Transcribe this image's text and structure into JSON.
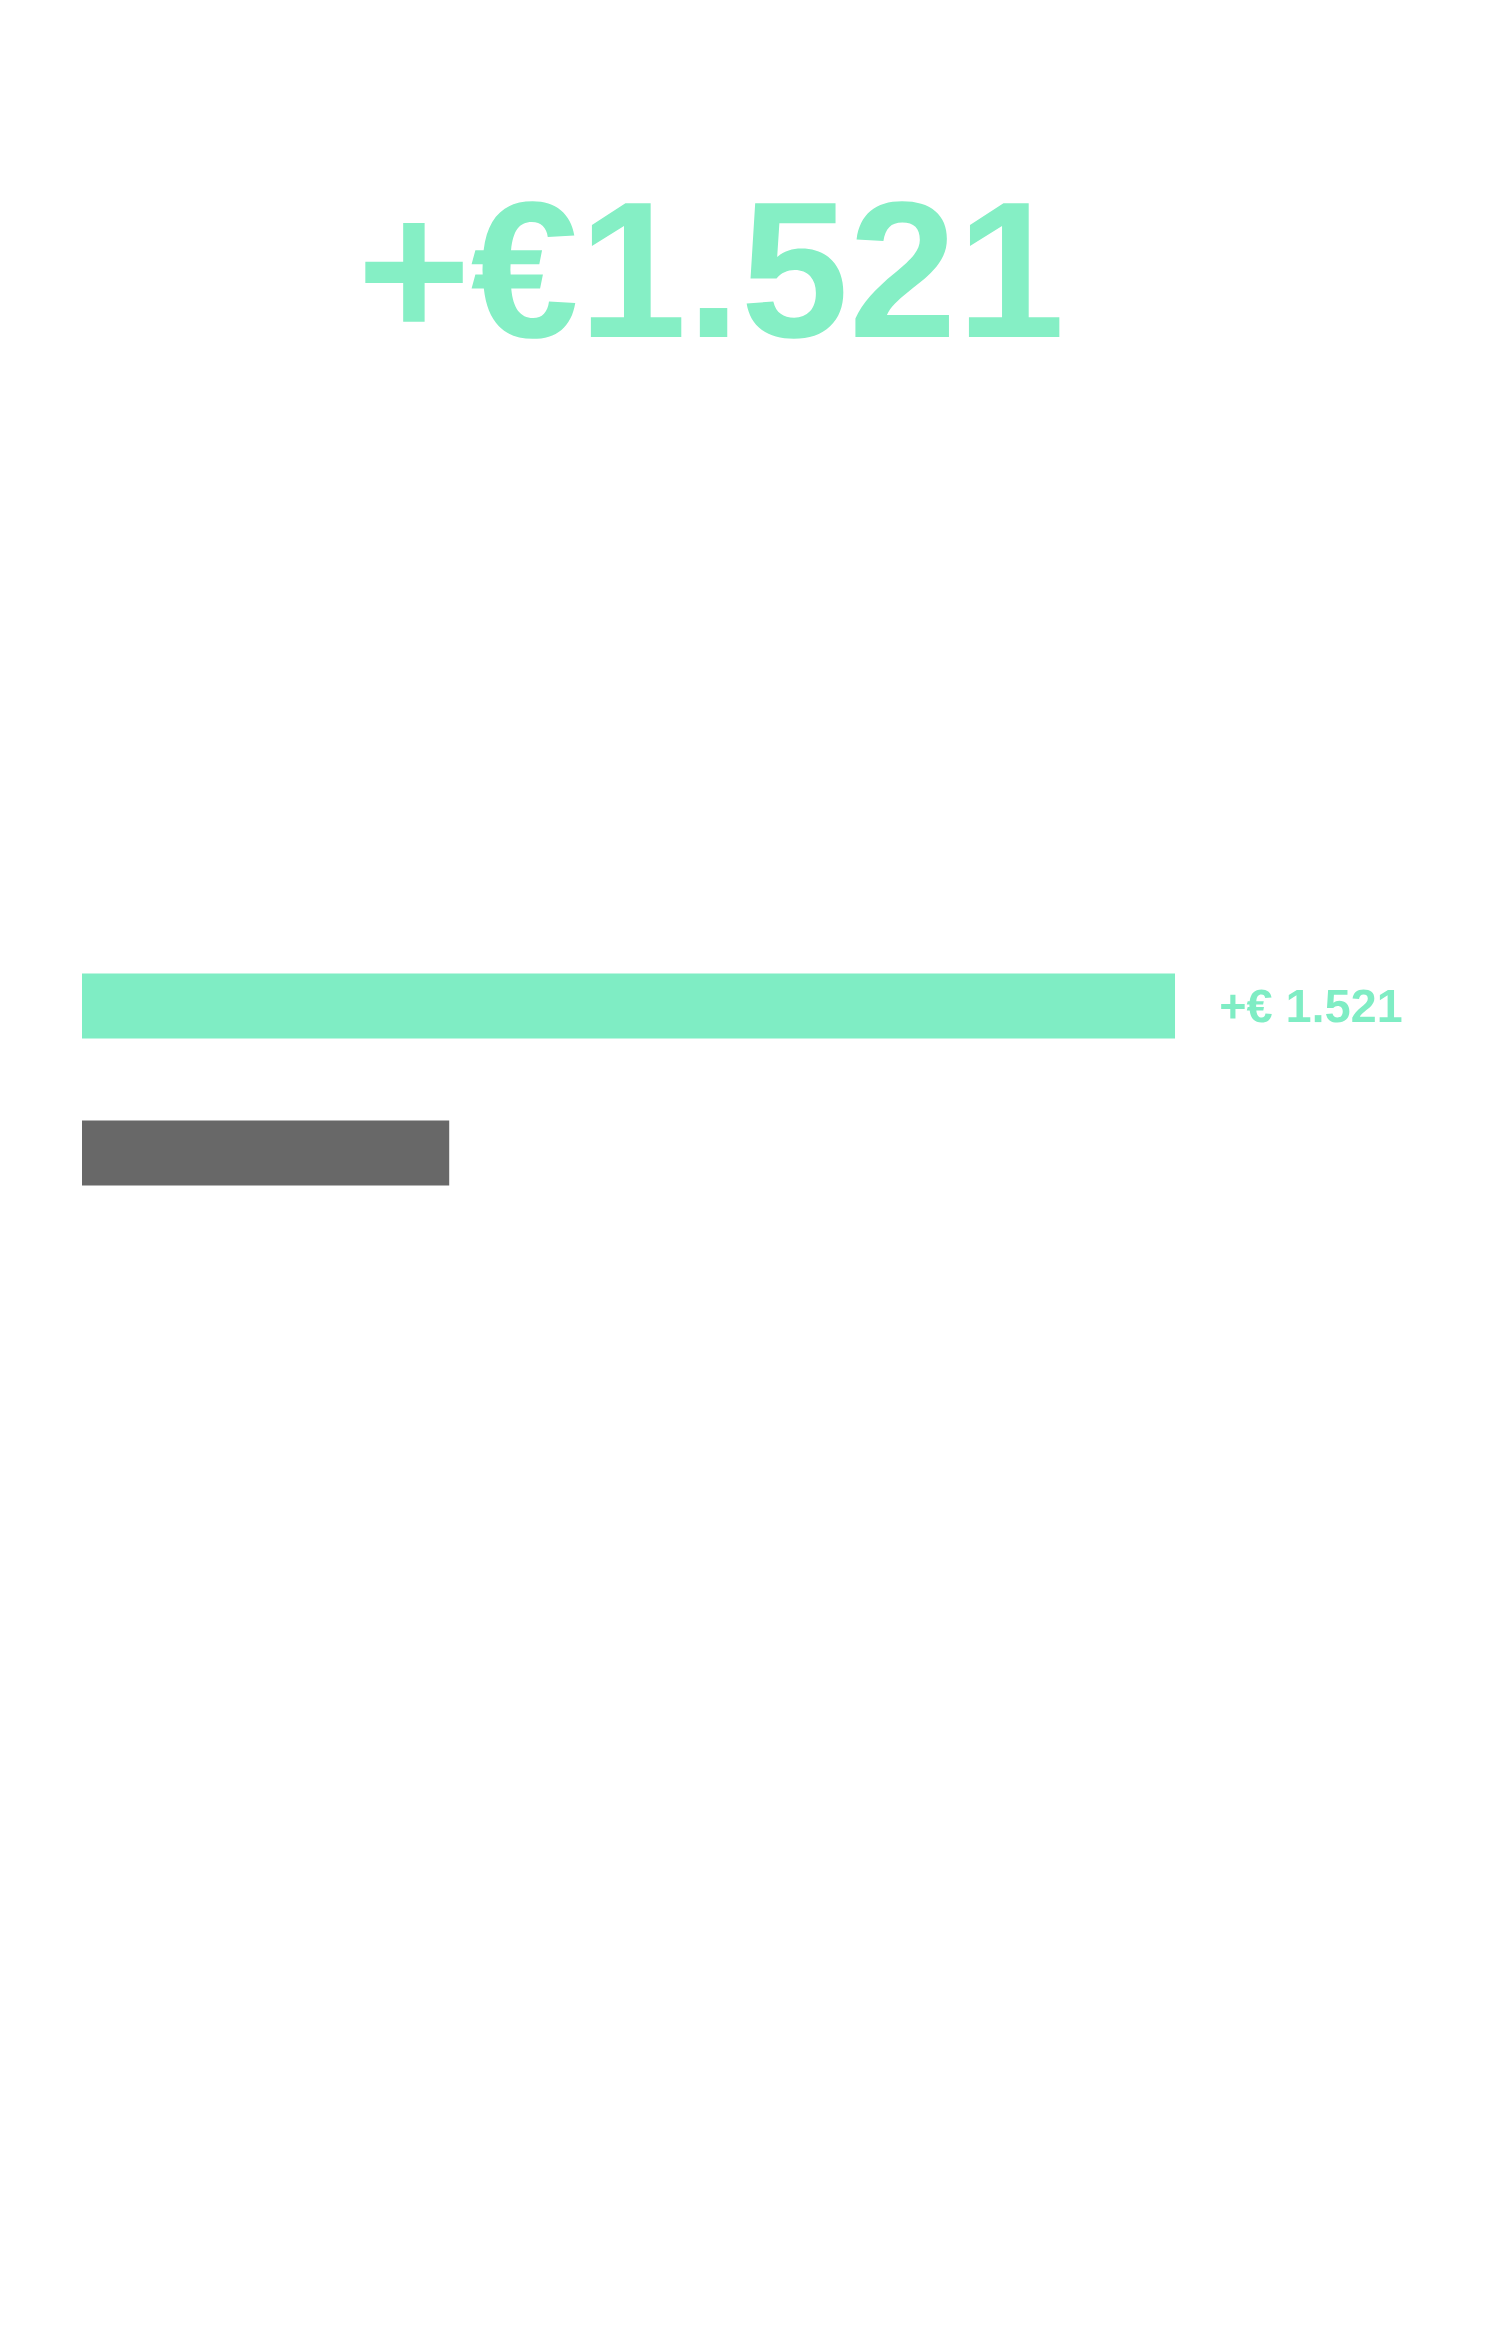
{
  "chart_data": {
    "type": "bar",
    "title": "+€1.521",
    "orientation": "horizontal",
    "categories": [
      null,
      null
    ],
    "values": [
      1521,
      511
    ],
    "colors": [
      "#7fedc4",
      "#686868"
    ],
    "xlim": [
      0,
      1521
    ],
    "tick_labels": false,
    "value_labels": [
      "+€ 1.521",
      null
    ]
  }
}
